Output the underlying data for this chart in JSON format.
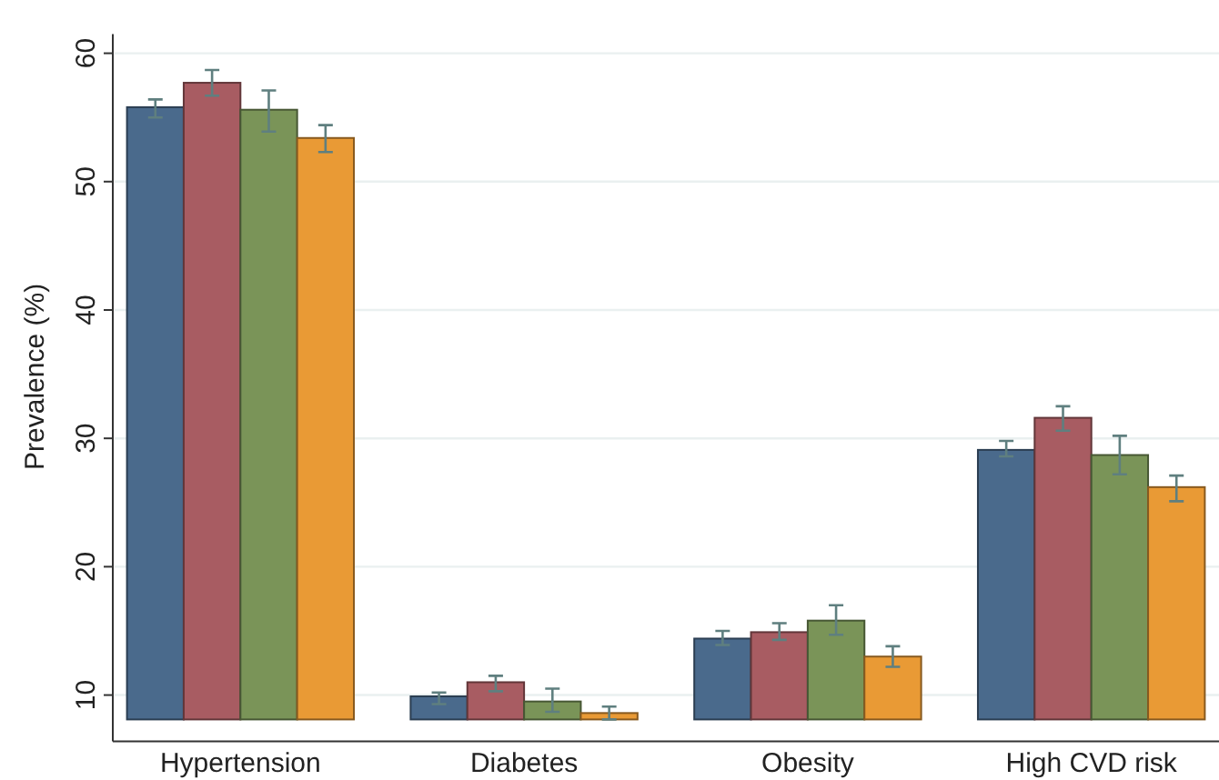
{
  "chart_data": {
    "type": "bar",
    "ylabel": "Prevalence (%)",
    "categories": [
      "Hypertension",
      "Diabetes",
      "Obesity",
      "High CVD risk"
    ],
    "series": [
      {
        "color": "#4a6a8c",
        "values": [
          55.8,
          9.9,
          14.4,
          29.1
        ],
        "errors": [
          [
            55.0,
            56.4
          ],
          [
            9.3,
            10.2
          ],
          [
            13.9,
            15.0
          ],
          [
            28.6,
            29.8
          ]
        ]
      },
      {
        "color": "#a85c62",
        "values": [
          57.7,
          11.0,
          14.9,
          31.6
        ],
        "errors": [
          [
            56.7,
            58.7
          ],
          [
            10.3,
            11.5
          ],
          [
            14.3,
            15.6
          ],
          [
            30.6,
            32.5
          ]
        ]
      },
      {
        "color": "#7a9458",
        "values": [
          55.6,
          9.5,
          15.8,
          28.7
        ],
        "errors": [
          [
            53.9,
            57.1
          ],
          [
            8.7,
            10.5
          ],
          [
            14.7,
            17.0
          ],
          [
            27.2,
            30.2
          ]
        ]
      },
      {
        "color": "#e99a35",
        "values": [
          53.4,
          8.6,
          13.0,
          26.2
        ],
        "errors": [
          [
            52.3,
            54.4
          ],
          [
            8.1,
            9.1
          ],
          [
            12.2,
            13.8
          ],
          [
            25.1,
            27.1
          ]
        ]
      }
    ],
    "ylim": [
      8.1,
      61.5
    ],
    "yticks": [
      10,
      20,
      30,
      40,
      50,
      60
    ],
    "grid": "y"
  }
}
